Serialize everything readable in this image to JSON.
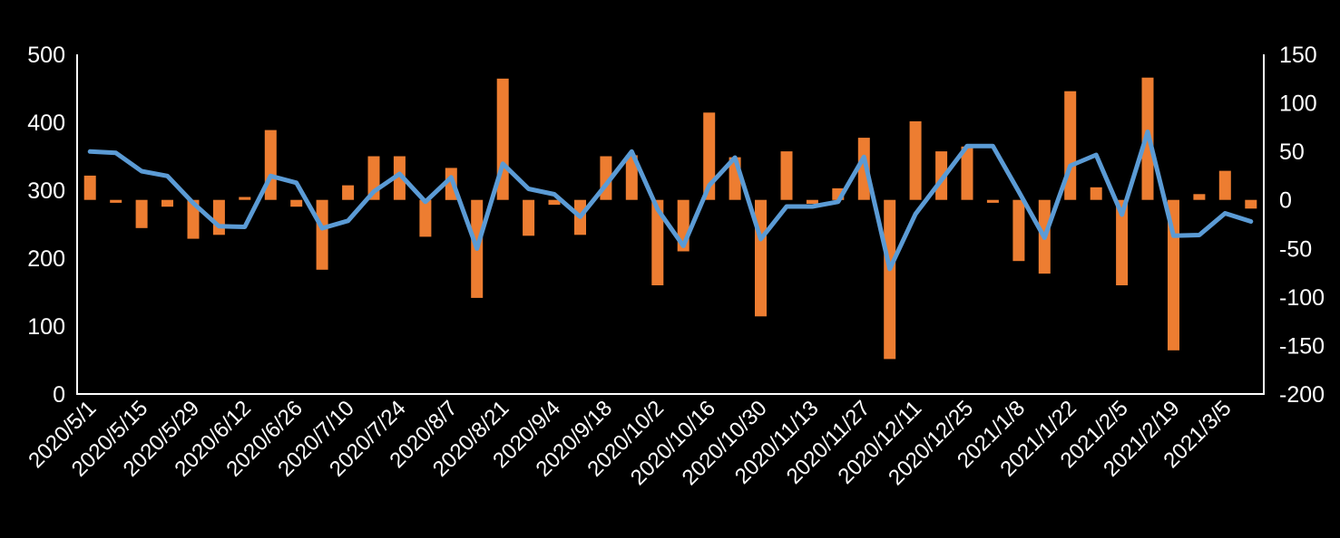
{
  "chart_data": {
    "type": "combo",
    "title": "",
    "legend": "none",
    "grid": false,
    "background_color": "#000000",
    "axis_color": "#FFFFFF",
    "n_points": 46,
    "x_label_every": 2,
    "x_tick_labels": [
      "2020/5/1",
      "2020/5/15",
      "2020/5/29",
      "2020/6/12",
      "2020/6/26",
      "2020/7/10",
      "2020/7/24",
      "2020/8/7",
      "2020/8/21",
      "2020/9/4",
      "2020/9/18",
      "2020/10/2",
      "2020/10/16",
      "2020/10/30",
      "2020/11/13",
      "2020/11/27",
      "2020/12/11",
      "2020/12/25",
      "2021/1/8",
      "2021/1/22",
      "2021/2/5",
      "2021/2/19",
      "2021/3/5"
    ],
    "left_axis": {
      "min": 0,
      "max": 500,
      "ticks": [
        0,
        100,
        200,
        300,
        400,
        500
      ]
    },
    "right_axis": {
      "min": -200,
      "max": 150,
      "ticks": [
        -200,
        -150,
        -100,
        -50,
        0,
        50,
        100,
        150
      ]
    },
    "series": [
      {
        "name": "bar-series",
        "type": "bar",
        "axis": "right",
        "color": "#ED7D31",
        "values": [
          25,
          -3,
          -29,
          -7,
          -40,
          -36,
          3,
          72,
          -7,
          -72,
          15,
          45,
          45,
          -38,
          33,
          -101,
          125,
          -37,
          -5,
          -36,
          45,
          46,
          -88,
          -53,
          90,
          44,
          -120,
          50,
          -4,
          12,
          64,
          -164,
          81,
          50,
          55,
          -3,
          -63,
          -76,
          112,
          13,
          -88,
          126,
          -155,
          6,
          30,
          -9
        ]
      },
      {
        "name": "line-series",
        "type": "line",
        "axis": "left",
        "color": "#5B9BD5",
        "values": [
          357,
          355,
          328,
          321,
          281,
          247,
          246,
          321,
          311,
          244,
          255,
          298,
          324,
          283,
          319,
          214,
          339,
          302,
          294,
          261,
          308,
          357,
          272,
          218,
          307,
          348,
          228,
          276,
          276,
          283,
          349,
          184,
          265,
          315,
          365,
          365,
          298,
          230,
          336,
          352,
          264,
          386,
          233,
          234,
          266,
          254
        ]
      }
    ]
  }
}
